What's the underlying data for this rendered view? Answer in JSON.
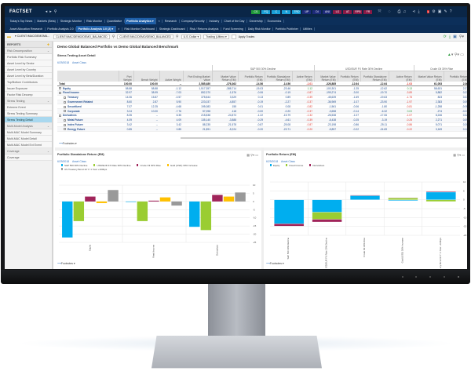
{
  "topbar": {
    "logo": "FACTSET",
    "buttons": [
      {
        "label": "CS",
        "color": "#1f9a3a"
      },
      {
        "label": "FQ",
        "color": "#1aa0d8"
      },
      {
        "label": "C",
        "color": "#1aa0d8"
      },
      {
        "label": "N",
        "color": "#1aa0d8"
      },
      {
        "label": "TRD",
        "color": "#1aa0d8"
      },
      {
        "label": "UP",
        "color": "#1d2a7a"
      },
      {
        "label": "DI",
        "color": "#1d2a7a"
      },
      {
        "label": "ANI",
        "color": "#1d2a7a"
      },
      {
        "label": "LG",
        "color": "#8a1a45"
      },
      {
        "label": "AT",
        "color": "#8a1a45"
      },
      {
        "label": "RPB",
        "color": "#8a1a45"
      },
      {
        "label": "FR",
        "color": "#8a1a45"
      }
    ],
    "badge": "9"
  },
  "nav1": [
    "Today's Top News",
    "Markets (Beta)",
    "Strategic Monitor",
    "Risk Monitor",
    "Quantitative",
    "Portfolio Analytics ▾",
    "×",
    "Research",
    "Company/Security",
    "Industry",
    "Chart of the Day",
    "Ownership",
    "Economics"
  ],
  "nav2": [
    "Asset Allocation Research",
    "Portfolio Analysis 2.0",
    "Portfolio Analysis 3.0 (2) ▾",
    "×",
    "Risk Monitor Dashboard",
    "Strategic Dashboard",
    "Risk / Returns Analysis",
    "Fund Screening",
    "Daily Risk Monitor",
    "Portfolio Publisher",
    "Utilities"
  ],
  "toolbar": {
    "account": "▾ CLIENT:/MAC/DEMOMA...",
    "portfolio": "CLIENT:/MAC/DEMO/DEMO_BALANCED",
    "benchmark": "CLIENT:/MAC/DEMO/DEMO_BALANCED",
    "currency": "U.S. Dollar ▾",
    "pricing": "Trading (Ultimo ▾",
    "apply_trades": "Apply Trades"
  },
  "sidebar": {
    "header": "REPORTS",
    "groups": [
      {
        "label": "Risk Decomposition",
        "items": [
          "Portfolio Risk Summary",
          "Asset Level by Sector",
          "Asset Level by Country",
          "Asset Level by Beta/Duration",
          "Top/Bottom Contributors",
          "Issuer Exposure",
          "Factor Risk Decomp"
        ]
      },
      {
        "label": "Stress Testing",
        "items": [
          "Extreme Event",
          "Stress Testing Summary",
          "Stress Testing Detail"
        ]
      },
      {
        "label": "Multi-Model Analysis",
        "items": [
          "Multi-MAC Model Summary",
          "Multi-MAC Model Detail",
          "Multi-MAC Model Ext Event"
        ]
      },
      {
        "label": "Coverage",
        "items": [
          "Coverage"
        ]
      }
    ],
    "selected": "Stress Testing Detail"
  },
  "main": {
    "title": "Demo Global Balanced Portfolio vs Demo Global Balanced Benchmark",
    "report": "Stress Testing Asset Detail",
    "date": "6/29/2018",
    "grouping": "Asset Class",
    "footnotes": "Footnotes ▾"
  },
  "table": {
    "groups": [
      "S&P 500 30% Decline",
      "USD/EUR FX Rate 30% Decline",
      "Crude Oil 30% Rise"
    ],
    "columns": [
      "",
      "Port Weight",
      "Bench Weight",
      "Active Weight",
      "Port Ending Market Value",
      "Market Value Return (EM)",
      "Portfolio Return (EM)",
      "Portfolio Standalone Return (EM)",
      "Active Return (EM)",
      "Market Value Return (EM)",
      "Portfolio Return (EM)",
      "Portfolio Standalone Return (EM)",
      "Active Return (EM)",
      "Market Value Return (EM)",
      "Portfolio Return (EM)"
    ],
    "rows": [
      {
        "level": 0,
        "cells": [
          "Total",
          "100.00",
          "100.00",
          "--",
          "2,585,480",
          "-376,362",
          "-14.56",
          "-14.56",
          "-1.01",
          "-326,885",
          "-12.64",
          "-12.64",
          "-1.03",
          "61,053",
          "2.36"
        ]
      },
      {
        "level": 1,
        "exp": "+",
        "cells": [
          "Equity",
          "58.88",
          "58.88",
          "-1.12",
          "1,517,357",
          "-388,714",
          "-15.03",
          "-23.46",
          "1.12",
          "-100,301",
          "-1.25",
          "-12.62",
          "0.13",
          "58,631",
          "2.27"
        ]
      },
      {
        "level": 1,
        "exp": "-",
        "cells": [
          "Fixed Income",
          "32.97",
          "38.99",
          "-7.03",
          "852,370",
          "-1,576",
          "-0.06",
          "-0.19",
          "-0.87",
          "-199,274",
          "-3.00",
          "-19.70",
          "-3.89",
          "5,882",
          "0.23"
        ]
      },
      {
        "level": 2,
        "exp": "+",
        "cells": [
          "Treasury",
          "14.06",
          "15.87",
          "-0.57",
          "375,844",
          "3,329",
          "0.13",
          "0.89",
          "-0.39",
          "-45,639",
          "-1.69",
          "-19.63",
          "-1.75",
          "823",
          "0.03"
        ]
      },
      {
        "level": 2,
        "exp": "+",
        "cells": [
          "Government Related",
          "8.60",
          "2.87",
          "5.90",
          "223,037",
          "-4,857",
          "-0.19",
          "-2.27",
          "-0.37",
          "-36,969",
          "-1.07",
          "-23.90",
          "-1.97",
          "2,383",
          "0.09"
        ]
      },
      {
        "level": 2,
        "exp": "+",
        "cells": [
          "Securitized",
          "7.07",
          "12.25",
          "-4.68",
          "195,083",
          "155",
          "0.01",
          "0.08",
          "-0.82",
          "-1,561",
          "-0.06",
          "-1.80",
          "-0.81",
          "-1,258",
          "-0.05"
        ]
      },
      {
        "level": 2,
        "exp": "+",
        "cells": [
          "Corporate",
          "3.24",
          "10.00",
          "-7.76",
          "57,098",
          "-118",
          "-0.00",
          "-0.20",
          "-0.37",
          "-3,658",
          "-0.14",
          "-6.32",
          "0.03",
          "-274",
          "-0.01"
        ]
      },
      {
        "level": 1,
        "exp": "-",
        "cells": [
          "Derivatives",
          "8.35",
          "--",
          "8.35",
          "215,838",
          "-24,873",
          "-1.22",
          "-15.79",
          "-1.32",
          "-26,538",
          "-1.07",
          "-17.06",
          "-1.07",
          "8,246",
          "0.32"
        ]
      },
      {
        "level": 2,
        "exp": "+",
        "cells": [
          "Metal Future",
          "4.09",
          "--",
          "4.09",
          "135,140",
          "-3,888",
          "-0.29",
          "-4.61",
          "-0.39",
          "-8,438",
          "-0.25",
          "-3.19",
          "-0.25",
          "2,271",
          "0.09"
        ]
      },
      {
        "level": 2,
        "exp": "+",
        "cells": [
          "Index Future",
          "3.42",
          "--",
          "3.42",
          "88,235",
          "-21,578",
          "-0.87",
          "-25.08",
          "-0.87",
          "-23,198",
          "-0.86",
          "-25.11",
          "-0.86",
          "5,071",
          "0.20"
        ]
      },
      {
        "level": 2,
        "exp": "+",
        "cells": [
          "Energy Future",
          "0.85",
          "--",
          "0.85",
          "21,891",
          "-5,224",
          "-0.20",
          "-23.71",
          "-0.20",
          "-5,857",
          "-0.22",
          "-24.69",
          "-0.22",
          "3,169",
          "0.12"
        ]
      }
    ]
  },
  "colors": {
    "negative": "#e0352b",
    "positive": "#2e9a3a"
  },
  "chart_data": [
    {
      "type": "bar",
      "title": "Portfolio Standalone Return (EM)",
      "date": "6/29/2018",
      "grouping": "Asset Class",
      "categories": [
        "Equity",
        "Fixed Income",
        "Derivatives"
      ],
      "ylim": [
        -25,
        10
      ],
      "yticks": [
        10,
        5,
        0,
        -5,
        -10,
        -15,
        -20,
        -25
      ],
      "grid": true,
      "legend": "top",
      "series": [
        {
          "name": "S&P 500 30% Decline",
          "color": "#00aeef",
          "values": [
            -22,
            -0.3,
            -15.5
          ]
        },
        {
          "name": "USD/EUR FX Rate 30% Decline",
          "color": "#9acd32",
          "values": [
            -12,
            -12,
            -17.5
          ]
        },
        {
          "name": "Crude Oil 30% Rise",
          "color": "#a0245a",
          "values": [
            3,
            0.5,
            4
          ]
        },
        {
          "name": "Gold (USD) 30% Increase",
          "color": "#ffc000",
          "values": [
            -1,
            2.5,
            3
          ]
        },
        {
          "name": "US Treasury Bond 10 Yr 1 Year +100bps",
          "color": "#999999",
          "values": [
            7,
            -2.5,
            5.5
          ]
        }
      ]
    },
    {
      "type": "bar",
      "stacked": true,
      "title": "Portfolio Return (EM)",
      "date": "6/29/2018",
      "grouping": "Asset Class",
      "categories": [
        "S&P 500 30% Decline",
        "USD/EUR FX Rate 30% Decline",
        "Crude Oil 30% Rise",
        "Gold (USD) 30% Increase",
        "US Treasury Bond 10 Yr 1 Year +100bps"
      ],
      "ylim": [
        -20,
        10
      ],
      "yticks": [
        10,
        5,
        0,
        -5,
        -10,
        -15,
        -20
      ],
      "grid": true,
      "legend": "top",
      "series": [
        {
          "name": "Equity",
          "color": "#00aeef",
          "values": [
            -13.5,
            -7,
            2.3,
            -0.5,
            4.3
          ]
        },
        {
          "name": "Fixed Income",
          "color": "#9acd32",
          "values": [
            0,
            -4,
            0,
            1,
            -1
          ]
        },
        {
          "name": "Derivatives",
          "color": "#a0245a",
          "values": [
            -1.3,
            -1.5,
            0.3,
            0.2,
            0.4
          ]
        }
      ]
    }
  ]
}
